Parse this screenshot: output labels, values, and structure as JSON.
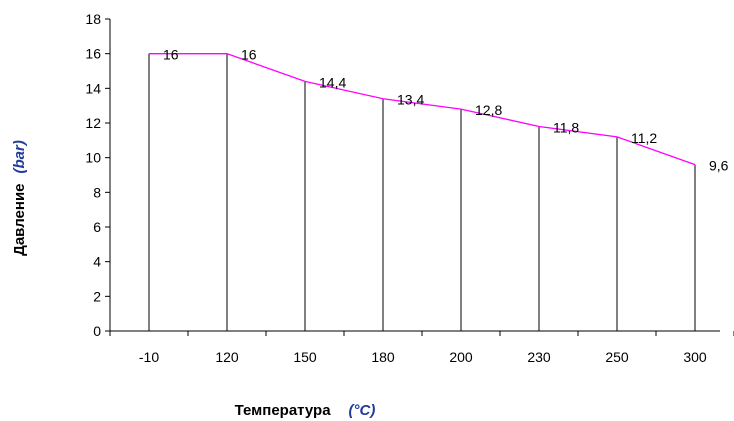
{
  "chart_data": {
    "type": "line",
    "categories": [
      "-10",
      "120",
      "150",
      "180",
      "200",
      "230",
      "250",
      "300"
    ],
    "series": [
      {
        "values": [
          16,
          16,
          14.4,
          13.4,
          12.8,
          11.8,
          11.2,
          9.6
        ],
        "labels": [
          "16",
          "16",
          "14,4",
          "13,4",
          "12,8",
          "11,8",
          "11,2",
          "9,6"
        ]
      }
    ],
    "xlabel": "Температура",
    "xlabel_unit": "(°C)",
    "ylabel": "Давление",
    "ylabel_unit": "(bar)",
    "ylim": [
      0,
      18
    ],
    "yticks": [
      "0",
      "2",
      "4",
      "6",
      "8",
      "10",
      "12",
      "14",
      "16",
      "18"
    ],
    "grid": false,
    "drop_lines": true,
    "colors": {
      "line": "#ff00ff",
      "drop_lines": "#000000",
      "axis": "#000000",
      "unit_text": "#1f3c99"
    }
  }
}
